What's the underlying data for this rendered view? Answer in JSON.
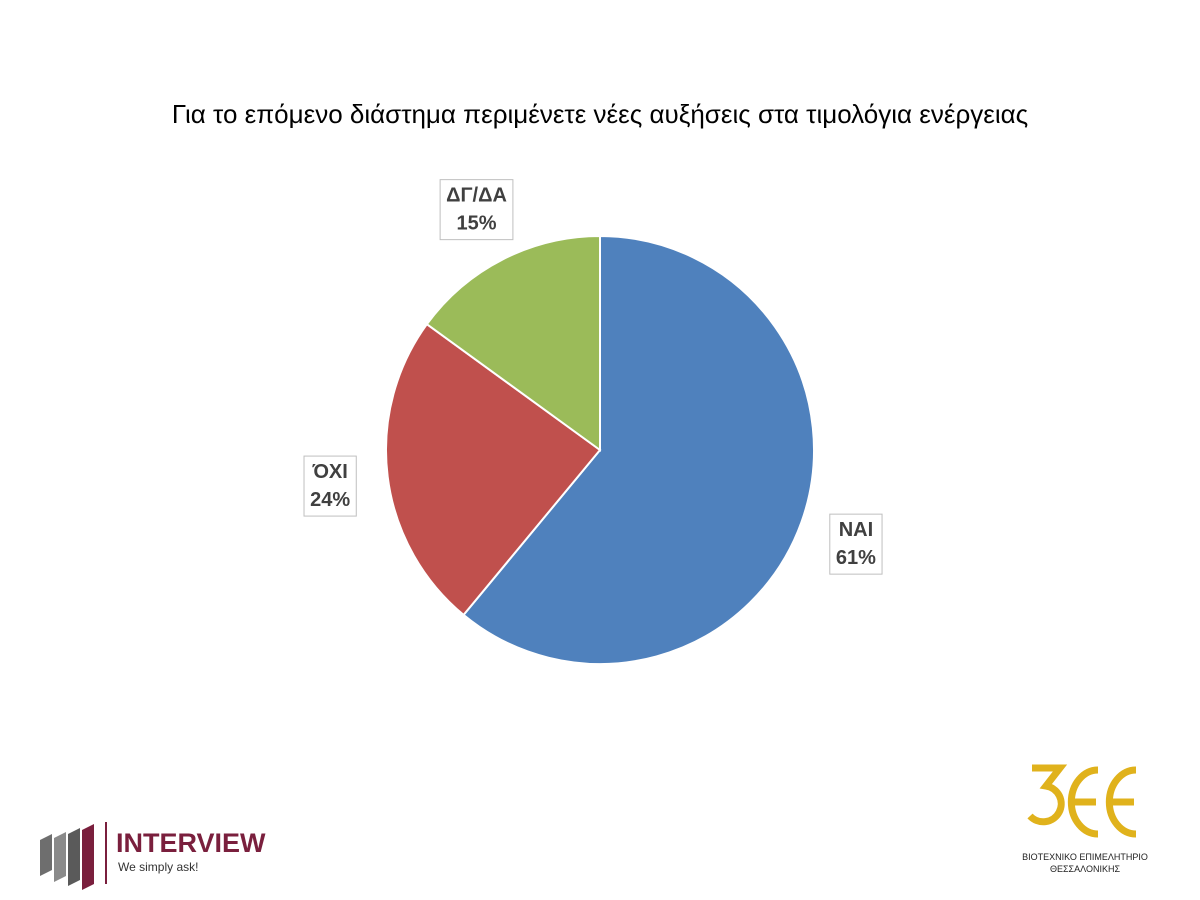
{
  "chart_data": {
    "type": "pie",
    "title": "Για το επόμενο διάστημα περιμένετε νέες αυξήσεις στα τιμολόγια ενέργειας",
    "categories": [
      "ΝΑΙ",
      "ΌΧΙ",
      "ΔΓ/ΔΑ"
    ],
    "values": [
      61,
      24,
      15
    ],
    "value_labels": [
      "61%",
      "24%",
      "15%"
    ],
    "colors": [
      "#4f81bd",
      "#c0504d",
      "#9bbb59"
    ]
  },
  "logos": {
    "left": {
      "name": "INTERVIEW",
      "slogan": "We simply ask!"
    },
    "right": {
      "line1": "ΒΙΟΤΕΧΝΙΚΟ ΕΠΙΜΕΛΗΤΗΡΙΟ",
      "line2": "ΘΕΣΣΑΛΟΝΙΚΗΣ"
    }
  }
}
